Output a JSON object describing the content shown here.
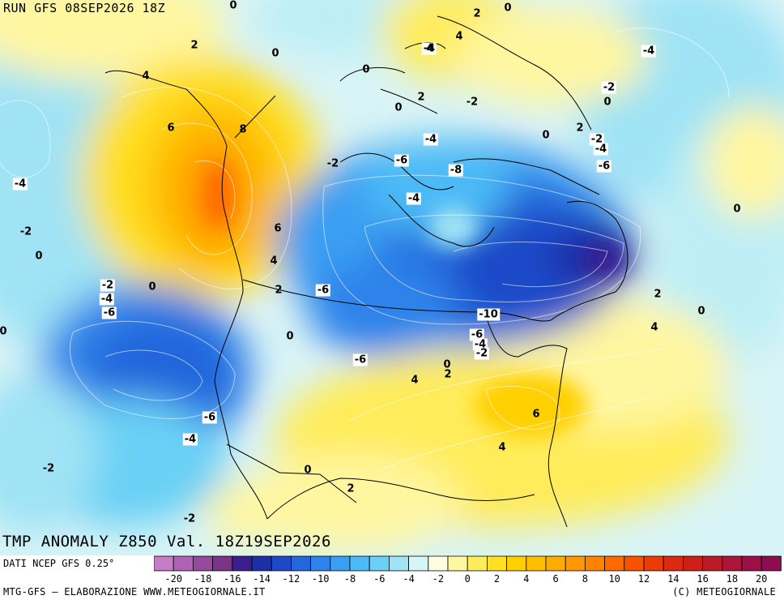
{
  "run_label": "RUN GFS 08SEP2026 18Z",
  "title": "TMP ANOMALY Z850 Val. 18Z19SEP2026",
  "footer": {
    "source": "DATI NCEP GFS 0.25°",
    "credit": "MTG-GFS — ELABORAZIONE WWW.METEOGIORNALE.IT",
    "copyright": "(C) METEOGIORNALE"
  },
  "legend": {
    "ticks": [
      "-20",
      "-18",
      "-16",
      "-14",
      "-12",
      "-10",
      "-8",
      "-6",
      "-4",
      "-2",
      "0",
      "2",
      "4",
      "6",
      "8",
      "10",
      "12",
      "14",
      "16",
      "18",
      "20"
    ],
    "colors": [
      "#c67cc6",
      "#b063b6",
      "#96499d",
      "#7a3488",
      "#3b1f90",
      "#1c2fa6",
      "#1f48c8",
      "#2466dc",
      "#2d83ea",
      "#3a9ff2",
      "#4bbaf6",
      "#6bd0f5",
      "#9fe3f5",
      "#d6f5f6",
      "#fffde0",
      "#fff6a0",
      "#ffec5a",
      "#ffe024",
      "#ffd000",
      "#ffbf00",
      "#ffac00",
      "#ff9800",
      "#ff8200",
      "#ff6a00",
      "#f85200",
      "#ec3b06",
      "#dc2a10",
      "#cc2018",
      "#bd1a28",
      "#ac1438",
      "#9c1046",
      "#8e0c52"
    ]
  },
  "contour_labels": [
    {
      "text": "0",
      "box": false
    },
    {
      "text": "2",
      "box": false
    },
    {
      "text": "0",
      "box": false
    },
    {
      "text": "2",
      "box": false
    },
    {
      "text": "4",
      "box": false
    },
    {
      "text": "4",
      "box": false
    },
    {
      "text": "0",
      "box": false
    },
    {
      "text": "-4",
      "box": true
    },
    {
      "text": "4",
      "box": false
    },
    {
      "text": "0",
      "box": false
    },
    {
      "text": "2",
      "box": false
    },
    {
      "text": "-2",
      "box": false
    },
    {
      "text": "0",
      "box": false
    },
    {
      "text": "-2",
      "box": true
    },
    {
      "text": "0",
      "box": false
    },
    {
      "text": "6",
      "box": false
    },
    {
      "text": "8",
      "box": false
    },
    {
      "text": "-4",
      "box": true
    },
    {
      "text": "0",
      "box": false
    },
    {
      "text": "2",
      "box": false
    },
    {
      "text": "-2",
      "box": true
    },
    {
      "text": "-4",
      "box": true
    },
    {
      "text": "-2",
      "box": false
    },
    {
      "text": "-6",
      "box": true
    },
    {
      "text": "-8",
      "box": true
    },
    {
      "text": "-6",
      "box": true
    },
    {
      "text": "-4",
      "box": true
    },
    {
      "text": "-4",
      "box": true
    },
    {
      "text": "0",
      "box": false
    },
    {
      "text": "-2",
      "box": false
    },
    {
      "text": "0",
      "box": false
    },
    {
      "text": "-4",
      "box": true
    },
    {
      "text": "6",
      "box": false
    },
    {
      "text": "4",
      "box": false
    },
    {
      "text": "-2",
      "box": true
    },
    {
      "text": "0",
      "box": false
    },
    {
      "text": "-4",
      "box": true
    },
    {
      "text": "-6",
      "box": true
    },
    {
      "text": "2",
      "box": false
    },
    {
      "text": "-6",
      "box": true
    },
    {
      "text": "2",
      "box": false
    },
    {
      "text": "0",
      "box": false
    },
    {
      "text": "-10",
      "box": true
    },
    {
      "text": "4",
      "box": false
    },
    {
      "text": "0",
      "box": false
    },
    {
      "text": "0",
      "box": false
    },
    {
      "text": "-6",
      "box": true
    },
    {
      "text": "-4",
      "box": true
    },
    {
      "text": "-2",
      "box": true
    },
    {
      "text": "-6",
      "box": true
    },
    {
      "text": "0",
      "box": false
    },
    {
      "text": "2",
      "box": false
    },
    {
      "text": "4",
      "box": false
    },
    {
      "text": "6",
      "box": false
    },
    {
      "text": "-6",
      "box": true
    },
    {
      "text": "-4",
      "box": true
    },
    {
      "text": "4",
      "box": false
    },
    {
      "text": "-2",
      "box": false
    },
    {
      "text": "0",
      "box": false
    },
    {
      "text": "2",
      "box": false
    },
    {
      "text": "-2",
      "box": false
    }
  ]
}
